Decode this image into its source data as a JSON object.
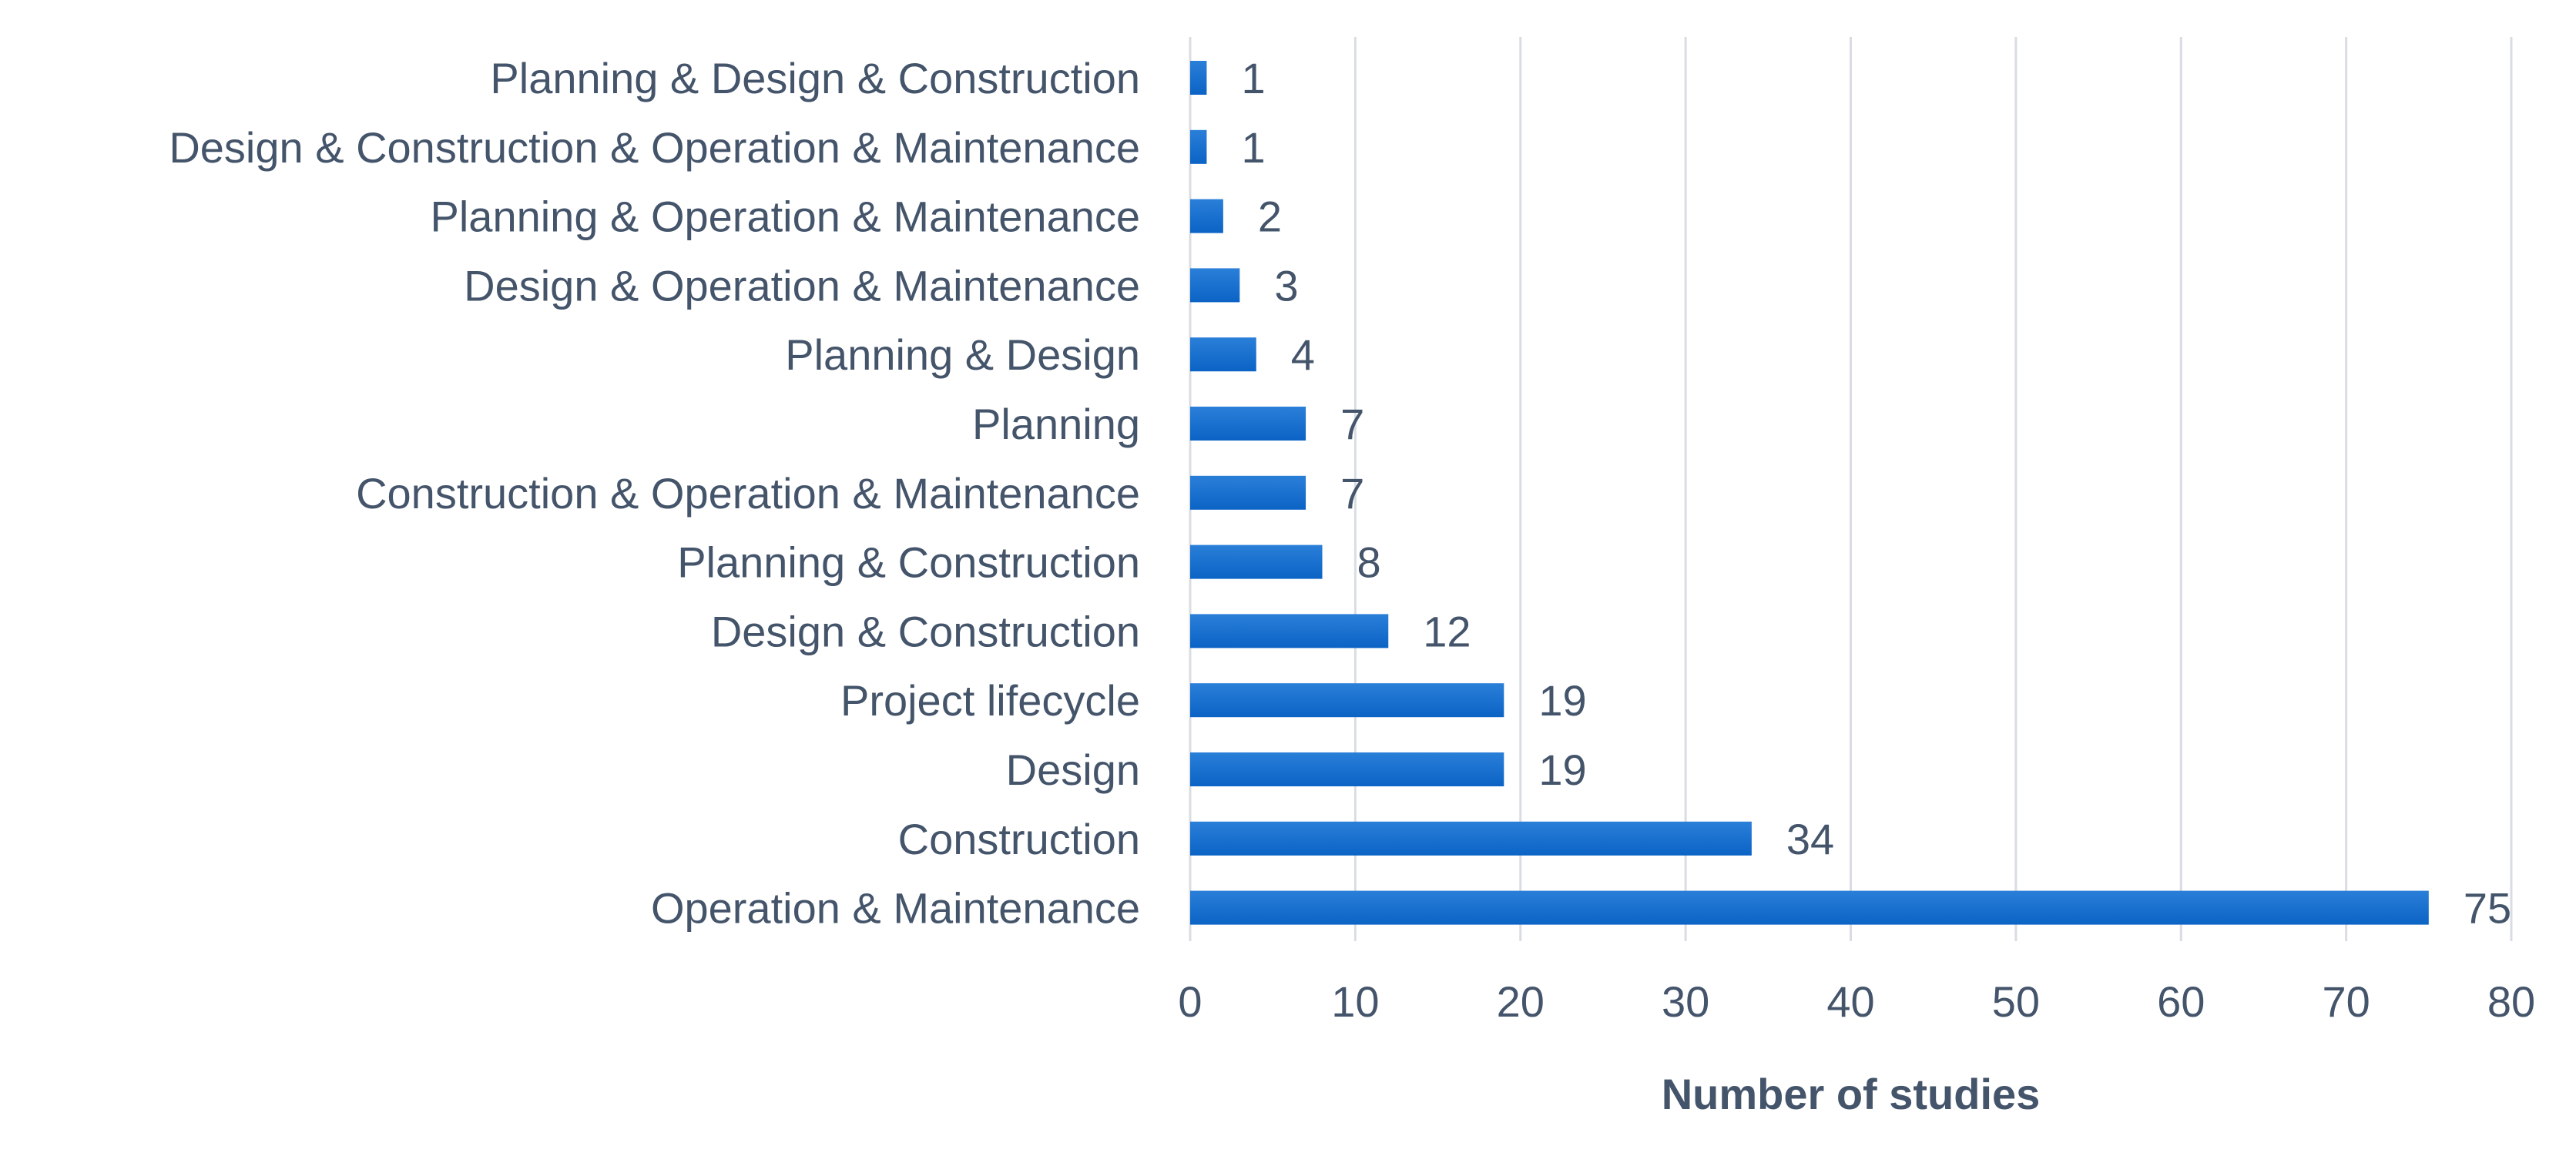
{
  "chart_data": {
    "type": "bar",
    "orientation": "horizontal",
    "title": "",
    "xlabel": "Number of studies",
    "ylabel": "",
    "xlim": [
      0,
      80
    ],
    "xticks": [
      0,
      10,
      20,
      30,
      40,
      50,
      60,
      70,
      80
    ],
    "grid": "vertical",
    "legend": "none",
    "categories": [
      "Planning & Design & Construction",
      "Design & Construction & Operation & Maintenance",
      "Planning & Operation & Maintenance",
      "Design & Operation & Maintenance",
      "Planning & Design",
      "Planning",
      "Construction & Operation & Maintenance",
      "Planning & Construction",
      "Design & Construction",
      "Project lifecycle",
      "Design",
      "Construction",
      "Operation & Maintenance"
    ],
    "values": [
      1,
      1,
      2,
      3,
      4,
      7,
      7,
      8,
      12,
      19,
      19,
      34,
      75
    ],
    "colors": {
      "bar": "#0b63c5",
      "bar_light": "#2a7fd8",
      "grid": "#d9dde3",
      "text": "#44546a"
    }
  }
}
